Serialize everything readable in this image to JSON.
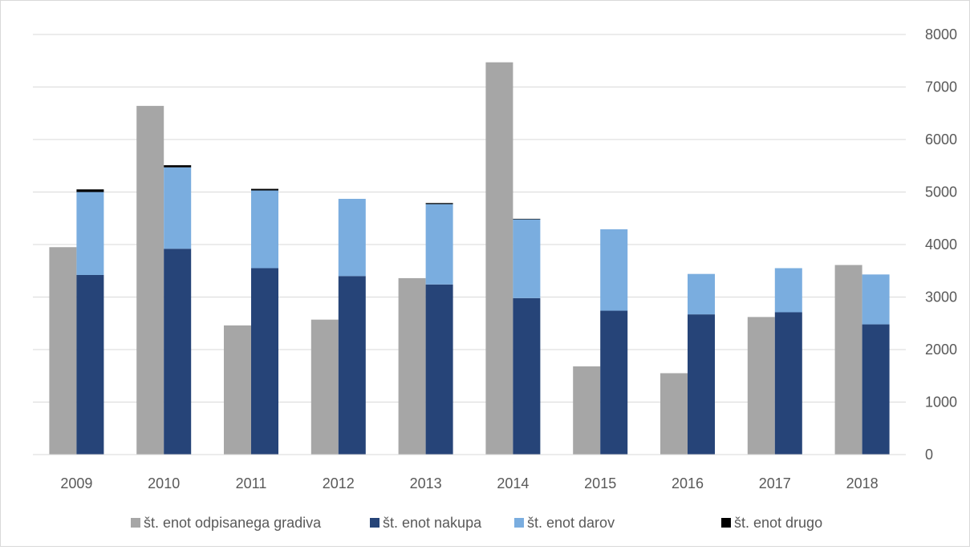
{
  "chart_data": {
    "type": "bar",
    "categories": [
      "2009",
      "2010",
      "2011",
      "2012",
      "2013",
      "2014",
      "2015",
      "2016",
      "2017",
      "2018"
    ],
    "series": [
      {
        "name": "št. enot odpisanega gradiva",
        "color": "#a6a6a6",
        "stack": "a",
        "values": [
          3950,
          6640,
          2460,
          2570,
          3360,
          7470,
          1680,
          1550,
          2620,
          3610
        ]
      },
      {
        "name": "št. enot nakupa",
        "color": "#264478",
        "stack": "b",
        "values": [
          3420,
          3920,
          3550,
          3400,
          3240,
          2980,
          2740,
          2670,
          2710,
          2480
        ]
      },
      {
        "name": "št. enot darov",
        "color": "#7aaddf",
        "stack": "b",
        "values": [
          1580,
          1550,
          1480,
          1470,
          1530,
          1500,
          1550,
          770,
          840,
          950
        ]
      },
      {
        "name": "št. enot drugo",
        "color": "#000000",
        "stack": "b",
        "values": [
          50,
          40,
          30,
          0,
          20,
          10,
          0,
          0,
          0,
          0
        ]
      }
    ],
    "ylim": [
      0,
      8000
    ],
    "yticks": [
      0,
      1000,
      2000,
      3000,
      4000,
      5000,
      6000,
      7000,
      8000
    ],
    "y_axis_side": "right",
    "grid": true,
    "legend_position": "bottom",
    "title": "",
    "xlabel": "",
    "ylabel": ""
  }
}
